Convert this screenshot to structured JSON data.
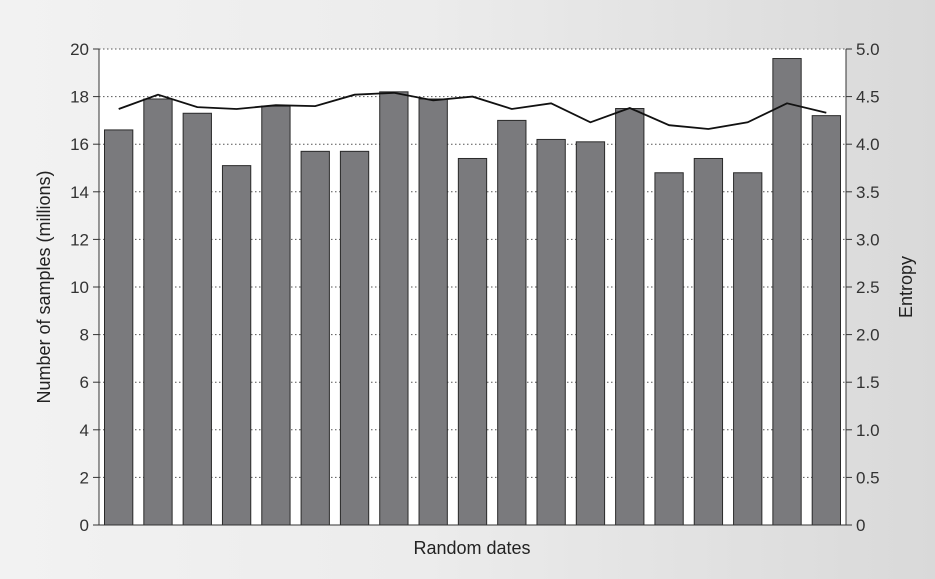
{
  "chart_data": {
    "type": "bar",
    "xlabel": "Random dates",
    "ylabel": "Number of samples (millions)",
    "y2label": "Entropy",
    "ylim": [
      0,
      20
    ],
    "y2lim": [
      0,
      5.0
    ],
    "yticks": [
      "0",
      "2",
      "4",
      "6",
      "8",
      "10",
      "12",
      "14",
      "16",
      "18",
      "20"
    ],
    "y2ticks": [
      "0",
      "0.5",
      "1.0",
      "1.5",
      "2.0",
      "2.5",
      "3.0",
      "3.5",
      "4.0",
      "4.5",
      "5.0"
    ],
    "grid": "horizontal dotted",
    "series": [
      {
        "type": "bar",
        "axis": "left",
        "color": "#7a7a7d",
        "values": [
          16.6,
          17.9,
          17.3,
          15.1,
          17.6,
          15.7,
          15.7,
          18.2,
          17.9,
          15.4,
          17.0,
          16.2,
          16.1,
          17.5,
          14.8,
          15.4,
          14.8,
          19.6,
          17.2
        ]
      },
      {
        "type": "line",
        "axis": "right",
        "color": "#111111",
        "values": [
          4.37,
          4.52,
          4.39,
          4.37,
          4.41,
          4.4,
          4.52,
          4.54,
          4.46,
          4.5,
          4.37,
          4.43,
          4.23,
          4.38,
          4.2,
          4.16,
          4.23,
          4.43,
          4.33
        ]
      }
    ]
  }
}
